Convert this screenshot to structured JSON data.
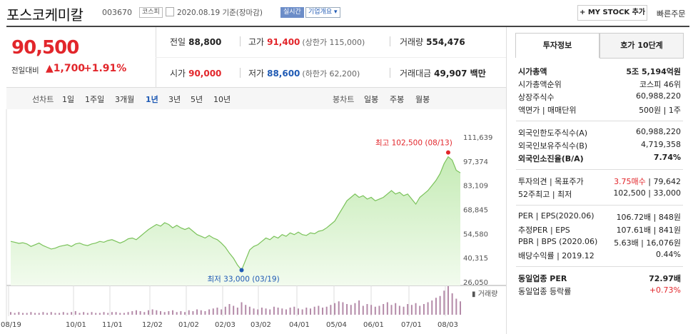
{
  "header": {
    "company": "포스코케미칼",
    "code": "003670",
    "market": "코스피",
    "date_text": "2020.08.19 기준(장마감)",
    "realtime": "실시간",
    "company_overview": "기업개요",
    "mystock": "+ MY STOCK 추가",
    "quick_order": "빠른주문"
  },
  "price": {
    "current": "90,500",
    "compare_label": "전일대비",
    "change": "▲1,700",
    "rate": "+1.91%"
  },
  "stats": {
    "prev_label": "전일",
    "prev": "88,800",
    "high_label": "고가",
    "high": "91,400",
    "upper_limit": "(상한가 115,000)",
    "volume_label": "거래량",
    "volume": "554,476",
    "open_label": "시가",
    "open": "90,000",
    "low_label": "저가",
    "low": "88,600",
    "lower_limit": "(하한가 62,200)",
    "amount_label": "거래대금",
    "amount": "49,907 백만"
  },
  "periods": {
    "line_chart": "선차트",
    "items": [
      "1일",
      "1주일",
      "3개월",
      "1년",
      "3년",
      "5년",
      "10년"
    ],
    "active": "1년",
    "candle_chart": "봉차트",
    "candles": [
      "일봉",
      "주봉",
      "월봉"
    ]
  },
  "chart_data": {
    "type": "area",
    "x_ticks": [
      "08/19",
      "10/01",
      "11/01",
      "12/02",
      "01/02",
      "02/03",
      "03/02",
      "04/01",
      "05/04",
      "06/01",
      "07/01",
      "08/03"
    ],
    "y_ticks": [
      "111,639",
      "97,374",
      "83,109",
      "68,845",
      "54,580",
      "40,315",
      "26,050"
    ],
    "ylim": [
      26050,
      111639
    ],
    "high_label": "최고 102,500 (08/13)",
    "low_label": "최저 33,000 (03/19)",
    "volume_label": "거래량",
    "values": [
      50000,
      49500,
      48800,
      49200,
      48500,
      47000,
      48000,
      49000,
      47500,
      46500,
      45500,
      46000,
      47000,
      47500,
      48000,
      47000,
      48500,
      49000,
      48000,
      47500,
      48500,
      49000,
      50000,
      49500,
      50500,
      51000,
      50000,
      49000,
      50000,
      51500,
      52000,
      51000,
      53000,
      55000,
      57000,
      58500,
      60000,
      59000,
      61000,
      60000,
      58000,
      59500,
      58000,
      57000,
      58000,
      56000,
      54000,
      53000,
      52000,
      53500,
      52000,
      51000,
      49000,
      46500,
      43000,
      40000,
      36000,
      33000,
      39000,
      45000,
      47000,
      48000,
      50000,
      52000,
      51000,
      53000,
      52000,
      54000,
      53000,
      55000,
      54000,
      55500,
      54000,
      53500,
      55000,
      54500,
      56000,
      56500,
      58000,
      60000,
      62000,
      66000,
      70000,
      74000,
      76000,
      78000,
      76000,
      77000,
      75000,
      76000,
      74000,
      75000,
      76000,
      78000,
      80000,
      78000,
      79000,
      77000,
      78000,
      75000,
      72000,
      76000,
      78000,
      80000,
      83000,
      86000,
      90000,
      96000,
      100000,
      98000,
      92000,
      90500
    ],
    "volumes": [
      3,
      2,
      3,
      2,
      2,
      3,
      2,
      2,
      3,
      2,
      3,
      2,
      2,
      3,
      2,
      3,
      4,
      2,
      3,
      2,
      3,
      2,
      2,
      3,
      2,
      3,
      3,
      2,
      2,
      3,
      4,
      5,
      4,
      3,
      5,
      6,
      5,
      4,
      3,
      4,
      5,
      3,
      4,
      3,
      5,
      4,
      6,
      5,
      4,
      6,
      7,
      8,
      6,
      9,
      12,
      10,
      8,
      14,
      11,
      9,
      7,
      6,
      8,
      7,
      6,
      9,
      8,
      7,
      6,
      8,
      9,
      7,
      6,
      8,
      7,
      9,
      10,
      8,
      9,
      11,
      13,
      15,
      14,
      12,
      11,
      13,
      16,
      10,
      12,
      11,
      9,
      10,
      12,
      14,
      11,
      13,
      10,
      9,
      12,
      11,
      13,
      10,
      12,
      14,
      16,
      19,
      21,
      27,
      32,
      24,
      18,
      15
    ]
  },
  "right_panel": {
    "tab_active": "투자정보",
    "tab_inactive": "호가 10단계",
    "rows1": [
      {
        "label": "시가총액",
        "value": "5조 5,194억원",
        "bold": true
      },
      {
        "label": "시가총액순위",
        "value": "코스피 46위"
      },
      {
        "label": "상장주식수",
        "value": "60,988,220"
      },
      {
        "label": "액면가 | 매매단위",
        "value": "500원 | 1주"
      }
    ],
    "rows2": [
      {
        "label": "외국인한도주식수(A)",
        "value": "60,988,220"
      },
      {
        "label": "외국인보유주식수(B)",
        "value": "4,719,358"
      },
      {
        "label": "외국인소진율(B/A)",
        "value": "7.74%",
        "bold": true
      }
    ],
    "rows3": [
      {
        "label": "투자의견 | 목표주가",
        "value_red": "3.75매수",
        "value": " | 79,642"
      },
      {
        "label": "52주최고 | 최저",
        "value": "102,500 | 33,000"
      }
    ],
    "rows4": [
      {
        "label": "PER | EPS(2020.06)",
        "value": "106.72배 | 848원"
      },
      {
        "label": "추정PER | EPS",
        "value": "107.61배 | 841원"
      },
      {
        "label": "PBR | BPS (2020.06)",
        "value": "5.63배 | 16,076원"
      },
      {
        "label": "배당수익률 | 2019.12",
        "value": "0.44%"
      }
    ],
    "rows5": [
      {
        "label": "동일업종 PER",
        "value": "72.97배",
        "bold": true
      },
      {
        "label": "동일업종 등락률",
        "value": "+0.73%",
        "red": true
      }
    ]
  }
}
